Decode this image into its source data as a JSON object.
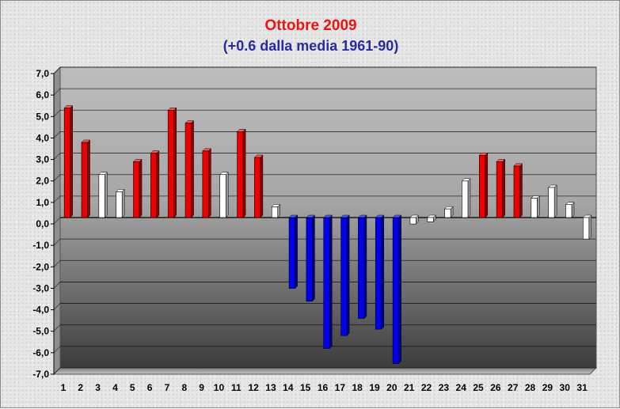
{
  "chart_data": {
    "type": "bar",
    "title": "Ottobre 2009",
    "subtitle": "(+0.6 dalla media 1961-90)",
    "xlabel": "",
    "ylabel": "",
    "ylim": [
      -7,
      7
    ],
    "yticks": [
      "-7,0",
      "-6,0",
      "-5,0",
      "-4,0",
      "-3,0",
      "-2,0",
      "-1,0",
      "0,0",
      "1,0",
      "2,0",
      "3,0",
      "4,0",
      "5,0",
      "6,0",
      "7,0"
    ],
    "categories": [
      "1",
      "2",
      "3",
      "4",
      "5",
      "6",
      "7",
      "8",
      "9",
      "10",
      "11",
      "12",
      "13",
      "14",
      "15",
      "16",
      "17",
      "18",
      "19",
      "20",
      "21",
      "22",
      "23",
      "24",
      "25",
      "26",
      "27",
      "28",
      "29",
      "30",
      "31"
    ],
    "values": [
      5.1,
      3.5,
      2.0,
      1.2,
      2.6,
      3.0,
      5.0,
      4.4,
      3.1,
      2.0,
      4.0,
      2.8,
      0.5,
      -3.3,
      -3.9,
      -6.1,
      -5.5,
      -4.7,
      -5.2,
      -6.8,
      -0.3,
      -0.2,
      0.4,
      1.7,
      2.9,
      2.6,
      2.4,
      0.9,
      1.4,
      0.6,
      -1.0
    ],
    "bar_colors": {
      "above": "#ee0000",
      "near": "#ffffff",
      "below": "#0000ee"
    },
    "bar_category": [
      "above",
      "above",
      "near",
      "near",
      "above",
      "above",
      "above",
      "above",
      "above",
      "near",
      "above",
      "above",
      "near",
      "below",
      "below",
      "below",
      "below",
      "below",
      "below",
      "below",
      "near",
      "near",
      "near",
      "near",
      "above",
      "above",
      "above",
      "near",
      "near",
      "near",
      "near"
    ],
    "grid": true,
    "legend": "none"
  }
}
